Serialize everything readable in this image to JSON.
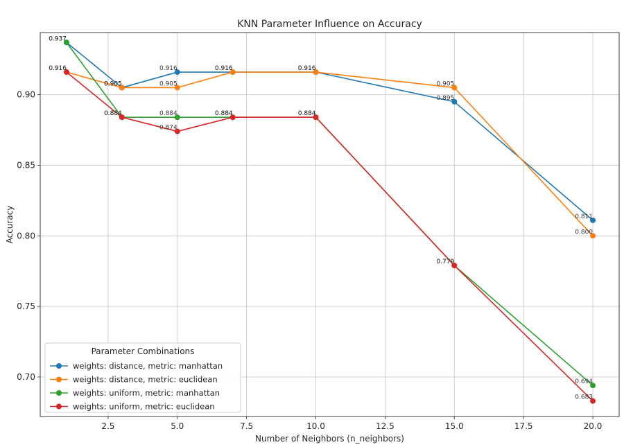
{
  "chart_data": {
    "type": "line",
    "title": "KNN Parameter Influence on Accuracy",
    "xlabel": "Number of Neighbors (n_neighbors)",
    "ylabel": "Accuracy",
    "x_ticks": [
      2.5,
      5.0,
      7.5,
      10.0,
      12.5,
      15.0,
      17.5,
      20.0
    ],
    "y_ticks": [
      0.7,
      0.75,
      0.8,
      0.85,
      0.9
    ],
    "x_tick_labels": [
      "2.5",
      "5.0",
      "7.5",
      "10.0",
      "12.5",
      "15.0",
      "17.5",
      "20.0"
    ],
    "y_tick_labels": [
      "0.70",
      "0.75",
      "0.80",
      "0.85",
      "0.90"
    ],
    "xlim": [
      0.05,
      20.95
    ],
    "ylim": [
      0.672,
      0.944
    ],
    "grid": true,
    "legend": {
      "title": "Parameter Combinations",
      "placement": "lower-left"
    },
    "x": [
      1,
      3,
      5,
      7,
      10,
      15,
      20
    ],
    "series": [
      {
        "name": "weights: distance, metric: manhattan",
        "color": "#1f77b4",
        "values": [
          0.937,
          0.905,
          0.916,
          0.916,
          0.916,
          0.895,
          0.811
        ],
        "labels": [
          "0.937",
          "0.905",
          "0.916",
          "0.916",
          "0.916",
          "0.895",
          "0.811"
        ]
      },
      {
        "name": "weights: distance, metric: euclidean",
        "color": "#ff7f0e",
        "values": [
          0.916,
          0.905,
          0.905,
          0.916,
          0.916,
          0.905,
          0.8
        ],
        "labels": [
          "0.916",
          "0.905",
          "0.905",
          "0.916",
          "0.916",
          "0.905",
          "0.800"
        ]
      },
      {
        "name": "weights: uniform, metric: manhattan",
        "color": "#2ca02c",
        "values": [
          0.937,
          0.884,
          0.884,
          0.884,
          0.884,
          0.779,
          0.694
        ],
        "labels": [
          "0.937",
          "0.884",
          "0.884",
          "0.884",
          "0.884",
          "0.779",
          "0.694"
        ]
      },
      {
        "name": "weights: uniform, metric: euclidean",
        "color": "#d62728",
        "values": [
          0.916,
          0.884,
          0.874,
          0.884,
          0.884,
          0.779,
          0.683
        ],
        "labels": [
          "0.916",
          "0.884",
          "0.874",
          "0.884",
          "0.884",
          "0.779",
          "0.683"
        ]
      }
    ]
  }
}
